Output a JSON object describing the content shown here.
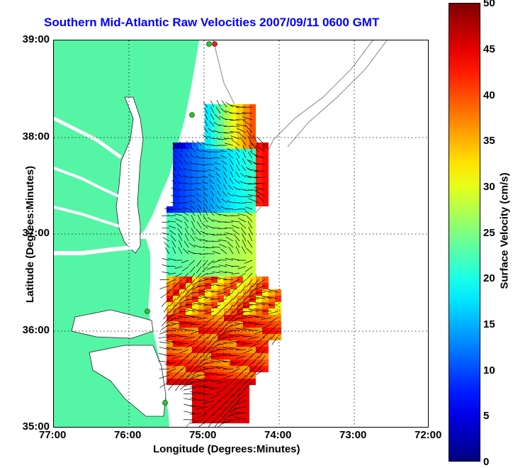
{
  "title": "Southern Mid-Atlantic Raw Velocities 2007/09/11 0600 GMT",
  "x_axis": {
    "label": "Longitude (Degrees:Minutes)",
    "ticks": [
      "77:00",
      "76:00",
      "75:00",
      "74:00",
      "73:00",
      "72:00"
    ]
  },
  "y_axis": {
    "label": "Latitude (Degrees:Minutes)",
    "ticks": [
      "39:00",
      "38:00",
      "37:00",
      "36:00",
      "35:00"
    ]
  },
  "colorbar": {
    "label": "Surface Velocity (cm/s)",
    "ticks": [
      "50",
      "45",
      "40",
      "35",
      "30",
      "25",
      "20",
      "15",
      "10",
      "5",
      "0"
    ],
    "range": [
      0,
      50
    ]
  },
  "colors": {
    "land": "#55f5a6",
    "title": "#0000ff",
    "station_green": "#22cc22",
    "station_red": "#ee2222"
  },
  "map_extent": {
    "lon": [
      -77,
      -72
    ],
    "lat": [
      35,
      39
    ]
  }
}
